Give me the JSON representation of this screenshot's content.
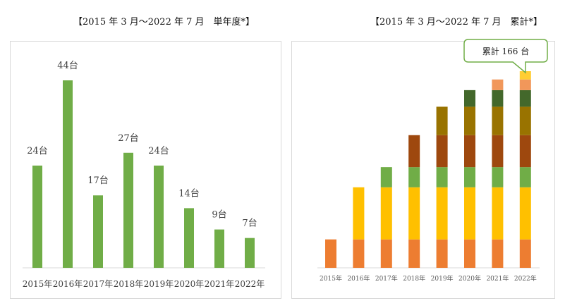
{
  "chart_data": [
    {
      "type": "bar",
      "title": "【2015 年 3 月～2022 年 7 月　単年度*】",
      "categories": [
        "2015年",
        "2016年",
        "2017年",
        "2018年",
        "2019年",
        "2020年",
        "2021年",
        "2022年"
      ],
      "values": [
        24,
        44,
        17,
        27,
        24,
        14,
        9,
        7
      ],
      "data_labels": [
        "24台",
        "44台",
        "17台",
        "27台",
        "24台",
        "14台",
        "9台",
        "7台"
      ],
      "color": "#70AD47",
      "xlabel": "",
      "ylabel": "",
      "ylim": [
        0,
        44
      ],
      "grid": false
    },
    {
      "type": "bar",
      "stacked": true,
      "title": "【2015 年 3 月～2022 年 7 月　累計*】",
      "categories": [
        "2015年",
        "2016年",
        "2017年",
        "2018年",
        "2019年",
        "2020年",
        "2021年",
        "2022年"
      ],
      "series": [
        {
          "name": "2015年",
          "values": [
            24,
            24,
            24,
            24,
            24,
            24,
            24,
            24
          ],
          "color": "#ED7D31"
        },
        {
          "name": "2016年",
          "values": [
            0,
            44,
            44,
            44,
            44,
            44,
            44,
            44
          ],
          "color": "#FFC000"
        },
        {
          "name": "2017年",
          "values": [
            0,
            0,
            17,
            17,
            17,
            17,
            17,
            17
          ],
          "color": "#70AD47"
        },
        {
          "name": "2018年",
          "values": [
            0,
            0,
            0,
            27,
            27,
            27,
            27,
            27
          ],
          "color": "#9E480E"
        },
        {
          "name": "2019年",
          "values": [
            0,
            0,
            0,
            0,
            24,
            24,
            24,
            24
          ],
          "color": "#997300"
        },
        {
          "name": "2020年",
          "values": [
            0,
            0,
            0,
            0,
            0,
            14,
            14,
            14
          ],
          "color": "#43682B"
        },
        {
          "name": "2021年",
          "values": [
            0,
            0,
            0,
            0,
            0,
            0,
            9,
            9
          ],
          "color": "#F1975A"
        },
        {
          "name": "2022年",
          "values": [
            0,
            0,
            0,
            0,
            0,
            0,
            0,
            7
          ],
          "color": "#FFCD33"
        }
      ],
      "annotation": "累計 166 台",
      "ylim": [
        0,
        166
      ],
      "grid": false
    }
  ]
}
